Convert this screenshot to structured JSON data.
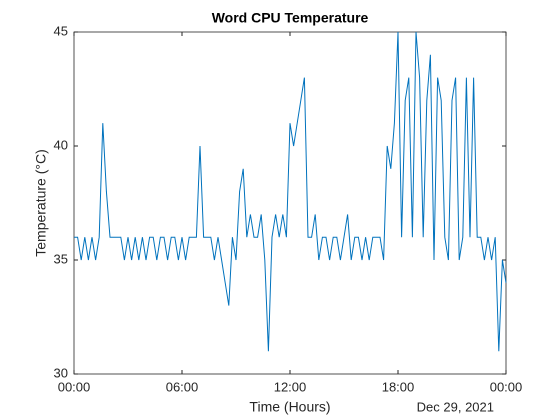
{
  "chart_data": {
    "type": "line",
    "title": "Word CPU Temperature",
    "x_label": "Time (Hours)",
    "y_label": "Temperature (°C)",
    "date_label": "Dec 29, 2021",
    "x": [
      0,
      0.2,
      0.4,
      0.6,
      0.8,
      1,
      1.2,
      1.4,
      1.6,
      1.8,
      2,
      2.2,
      2.4,
      2.6,
      2.8,
      3,
      3.2,
      3.4,
      3.6,
      3.8,
      4,
      4.2,
      4.4,
      4.6,
      4.8,
      5,
      5.2,
      5.4,
      5.6,
      5.8,
      6,
      6.2,
      6.4,
      6.6,
      6.8,
      7,
      7.2,
      7.4,
      7.6,
      7.8,
      8,
      8.2,
      8.4,
      8.6,
      8.8,
      9,
      9.2,
      9.4,
      9.6,
      9.8,
      10,
      10.2,
      10.4,
      10.6,
      10.8,
      11,
      11.2,
      11.4,
      11.6,
      11.8,
      12,
      12.2,
      12.4,
      12.6,
      12.8,
      13,
      13.2,
      13.4,
      13.6,
      13.8,
      14,
      14.2,
      14.4,
      14.6,
      14.8,
      15,
      15.2,
      15.4,
      15.6,
      15.8,
      16,
      16.2,
      16.4,
      16.6,
      16.8,
      17,
      17.2,
      17.4,
      17.6,
      17.8,
      18,
      18.2,
      18.4,
      18.6,
      18.8,
      19,
      19.2,
      19.4,
      19.6,
      19.8,
      20,
      20.2,
      20.4,
      20.6,
      20.8,
      21,
      21.2,
      21.4,
      21.6,
      21.8,
      22,
      22.2,
      22.4,
      22.6,
      22.8,
      23,
      23.2,
      23.4,
      23.6,
      23.8,
      24
    ],
    "series": [
      {
        "name": "Temperature",
        "color": "#0072bd",
        "values": [
          36,
          36,
          35,
          36,
          35,
          36,
          35,
          36,
          41,
          38,
          36,
          36,
          36,
          36,
          35,
          36,
          35,
          36,
          35,
          36,
          35,
          36,
          36,
          35,
          36,
          36,
          35,
          36,
          36,
          35,
          36,
          35,
          36,
          36,
          36,
          40,
          36,
          36,
          36,
          35,
          36,
          35,
          34,
          33,
          36,
          35,
          38,
          39,
          36,
          37,
          36,
          36,
          37,
          35,
          31,
          36,
          37,
          36,
          37,
          36,
          41,
          40,
          41,
          42,
          43,
          36,
          36,
          37,
          35,
          36,
          36,
          35,
          36,
          36,
          35,
          36,
          37,
          35,
          36,
          36,
          35,
          36,
          35,
          36,
          36,
          36,
          35,
          40,
          39,
          41,
          45,
          36,
          42,
          43,
          36,
          45,
          43,
          36,
          42,
          44,
          35,
          43,
          42,
          36,
          35,
          42,
          43,
          35,
          36,
          43,
          36,
          43,
          36,
          36,
          35,
          36,
          35,
          36,
          31,
          35,
          34
        ]
      }
    ],
    "xlim": [
      0,
      24
    ],
    "xticks": [
      {
        "value": 0,
        "label": "00:00"
      },
      {
        "value": 6,
        "label": "06:00"
      },
      {
        "value": 12,
        "label": "12:00"
      },
      {
        "value": 18,
        "label": "18:00"
      },
      {
        "value": 24,
        "label": "00:00"
      }
    ],
    "ylim": [
      30,
      45
    ],
    "yticks": [
      30,
      35,
      40,
      45
    ]
  }
}
